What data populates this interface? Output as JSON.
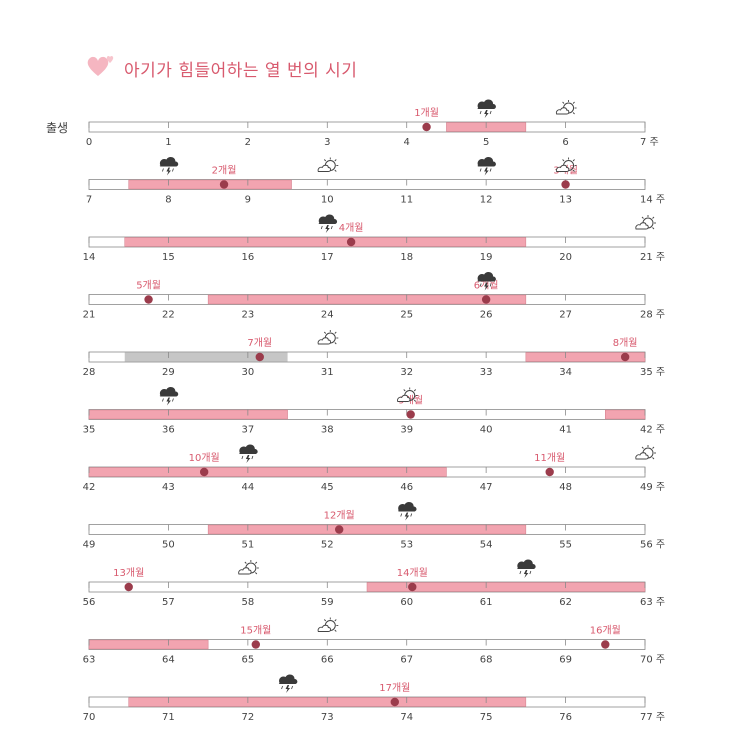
{
  "title": "아기가 힘들어하는 열 번의 시기",
  "birth_label": "출생",
  "week_unit": "주",
  "colors": {
    "accent": "#d85a6e",
    "bar_fill": "#f2a4b0",
    "gray_fill": "#c6c6c6",
    "dot": "#9b3c4c",
    "bar_stroke": "#8a8a8a"
  },
  "legend_icons": {
    "stormy": "storm-cloud-icon",
    "sunny": "sun-behind-cloud-icon"
  },
  "rows": [
    {
      "start": 0,
      "fills": [
        [
          4.5,
          5.5
        ]
      ],
      "markers": [
        {
          "at": 4.25,
          "label": "1개월"
        }
      ],
      "storm": [
        5
      ],
      "sun": [
        6
      ]
    },
    {
      "start": 7,
      "fills": [
        [
          7.5,
          9.55
        ]
      ],
      "markers": [
        {
          "at": 8.7,
          "label": "2개월"
        },
        {
          "at": 13,
          "label": "3개월"
        }
      ],
      "storm": [
        8,
        12
      ],
      "sun": [
        10,
        13
      ]
    },
    {
      "start": 14,
      "fills": [
        [
          14.45,
          19.5
        ]
      ],
      "markers": [
        {
          "at": 17.3,
          "label": "4개월"
        }
      ],
      "storm": [
        17
      ],
      "sun": [
        21
      ]
    },
    {
      "start": 21,
      "fills": [
        [
          22.5,
          26.5
        ]
      ],
      "markers": [
        {
          "at": 21.75,
          "label": "5개월"
        },
        {
          "at": 26,
          "label": "6개월"
        }
      ],
      "storm": [
        26
      ],
      "sun": []
    },
    {
      "start": 28,
      "fills": [
        [
          33.5,
          35
        ]
      ],
      "gray": [
        [
          28.45,
          30.5
        ]
      ],
      "markers": [
        {
          "at": 30.15,
          "label": "7개월"
        },
        {
          "at": 34.75,
          "label": "8개월"
        }
      ],
      "storm": [],
      "sun": [
        31
      ]
    },
    {
      "start": 35,
      "fills": [
        [
          35,
          37.5
        ],
        [
          41.5,
          42
        ]
      ],
      "markers": [
        {
          "at": 39.05,
          "label": "9개월"
        }
      ],
      "storm": [
        36
      ],
      "sun": [
        39
      ]
    },
    {
      "start": 42,
      "fills": [
        [
          42,
          46.5
        ]
      ],
      "markers": [
        {
          "at": 43.45,
          "label": "10개월"
        },
        {
          "at": 47.8,
          "label": "11개월"
        }
      ],
      "storm": [
        44
      ],
      "sun": [
        49
      ]
    },
    {
      "start": 49,
      "fills": [
        [
          50.5,
          54.5
        ]
      ],
      "markers": [
        {
          "at": 52.15,
          "label": "12개월"
        }
      ],
      "storm": [
        53
      ],
      "sun": []
    },
    {
      "start": 56,
      "fills": [
        [
          59.5,
          63
        ]
      ],
      "markers": [
        {
          "at": 56.5,
          "label": "13개월"
        },
        {
          "at": 60.07,
          "label": "14개월"
        }
      ],
      "storm": [
        61.5
      ],
      "sun": [
        58
      ]
    },
    {
      "start": 63,
      "fills": [
        [
          63,
          64.5
        ]
      ],
      "markers": [
        {
          "at": 65.1,
          "label": "15개월"
        },
        {
          "at": 69.5,
          "label": "16개월"
        }
      ],
      "storm": [],
      "sun": [
        66
      ]
    },
    {
      "start": 70,
      "fills": [
        [
          70.5,
          75.5
        ]
      ],
      "markers": [
        {
          "at": 73.85,
          "label": "17개월"
        }
      ],
      "storm": [
        72.5
      ],
      "sun": []
    }
  ]
}
